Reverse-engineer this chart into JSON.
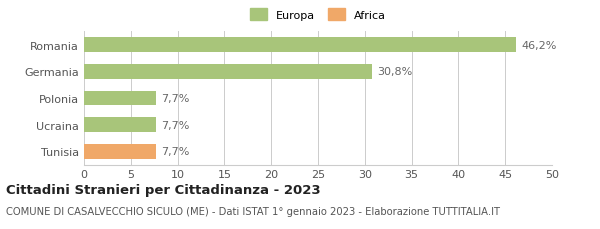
{
  "categories": [
    "Romania",
    "Germania",
    "Polonia",
    "Ucraina",
    "Tunisia"
  ],
  "values": [
    46.2,
    30.8,
    7.7,
    7.7,
    7.7
  ],
  "labels": [
    "46,2%",
    "30,8%",
    "7,7%",
    "7,7%",
    "7,7%"
  ],
  "bar_colors": [
    "#a8c57a",
    "#a8c57a",
    "#a8c57a",
    "#a8c57a",
    "#f0a868"
  ],
  "legend_items": [
    {
      "label": "Europa",
      "color": "#a8c57a"
    },
    {
      "label": "Africa",
      "color": "#f0a868"
    }
  ],
  "xlim": [
    0,
    50
  ],
  "xticks": [
    0,
    5,
    10,
    15,
    20,
    25,
    30,
    35,
    40,
    45,
    50
  ],
  "title": "Cittadini Stranieri per Cittadinanza - 2023",
  "subtitle": "COMUNE DI CASALVECCHIO SICULO (ME) - Dati ISTAT 1° gennaio 2023 - Elaborazione TUTTITALIA.IT",
  "background_color": "#ffffff",
  "bar_edge_color": "none",
  "grid_color": "#cccccc",
  "label_fontsize": 8.0,
  "tick_fontsize": 8.0,
  "title_fontsize": 9.5,
  "subtitle_fontsize": 7.2
}
